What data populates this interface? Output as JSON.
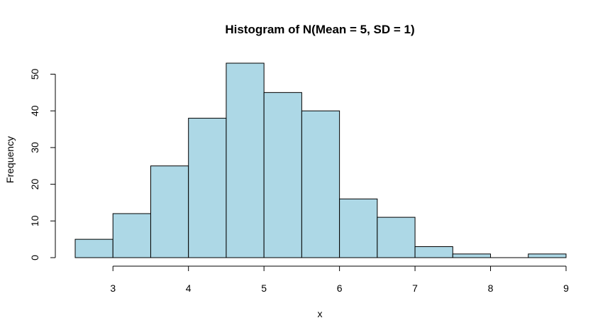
{
  "chart_data": {
    "type": "bar",
    "title": "Histogram of N(Mean = 5, SD = 1)",
    "xlabel": "x",
    "ylabel": "Frequency",
    "bins": [
      {
        "x0": 2.5,
        "x1": 3.0,
        "count": 5
      },
      {
        "x0": 3.0,
        "x1": 3.5,
        "count": 12
      },
      {
        "x0": 3.5,
        "x1": 4.0,
        "count": 25
      },
      {
        "x0": 4.0,
        "x1": 4.5,
        "count": 38
      },
      {
        "x0": 4.5,
        "x1": 5.0,
        "count": 53
      },
      {
        "x0": 5.0,
        "x1": 5.5,
        "count": 45
      },
      {
        "x0": 5.5,
        "x1": 6.0,
        "count": 40
      },
      {
        "x0": 6.0,
        "x1": 6.5,
        "count": 16
      },
      {
        "x0": 6.5,
        "x1": 7.0,
        "count": 11
      },
      {
        "x0": 7.0,
        "x1": 7.5,
        "count": 3
      },
      {
        "x0": 7.5,
        "x1": 8.0,
        "count": 1
      },
      {
        "x0": 8.0,
        "x1": 8.5,
        "count": 0
      },
      {
        "x0": 8.5,
        "x1": 9.0,
        "count": 1
      }
    ],
    "xlim": [
      2.5,
      9
    ],
    "ylim": [
      0,
      53
    ],
    "xticks": [
      "3",
      "4",
      "5",
      "6",
      "7",
      "8",
      "9"
    ],
    "yticks": [
      "0",
      "10",
      "20",
      "30",
      "40",
      "50"
    ],
    "bar_color": "#add8e6",
    "grid": false
  }
}
